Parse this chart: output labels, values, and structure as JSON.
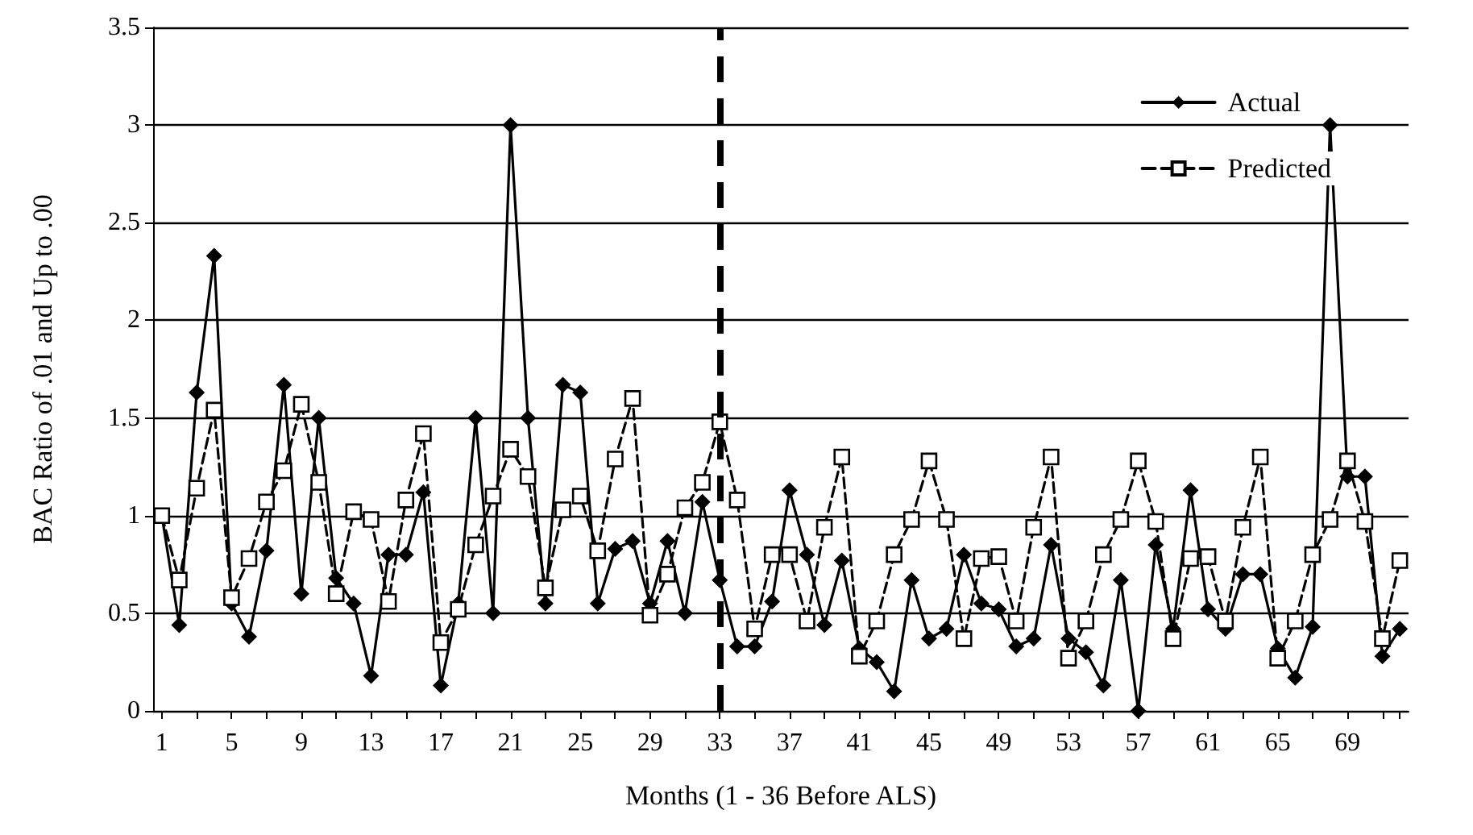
{
  "chart_data": {
    "type": "line",
    "xlabel": "Months (1 - 36 Before ALS)",
    "ylabel": "BAC Ratio of .01 and Up to .00",
    "categories": [
      "1",
      null,
      null,
      null,
      "5",
      null,
      null,
      null,
      "9",
      null,
      null,
      null,
      "13",
      null,
      null,
      null,
      "17",
      null,
      null,
      null,
      "21",
      null,
      null,
      null,
      "25",
      null,
      null,
      null,
      "29",
      null,
      null,
      null,
      "33",
      null,
      null,
      null,
      "37",
      null,
      null,
      null,
      "41",
      null,
      null,
      null,
      "45",
      null,
      null,
      null,
      "49",
      null,
      null,
      null,
      "53",
      null,
      null,
      null,
      "57",
      null,
      null,
      null,
      "61",
      null,
      null,
      null,
      "65",
      null,
      null,
      null,
      "69",
      null,
      null,
      null
    ],
    "series": [
      {
        "name": "Actual",
        "color": "#000000",
        "marker": "diamond",
        "line_style": "solid",
        "values": [
          1.0,
          0.44,
          1.63,
          2.33,
          0.55,
          0.38,
          0.82,
          1.67,
          0.6,
          1.5,
          0.68,
          0.55,
          0.18,
          0.8,
          0.8,
          1.12,
          0.13,
          0.55,
          1.5,
          0.5,
          3.0,
          1.5,
          0.55,
          1.67,
          1.63,
          0.55,
          0.83,
          0.87,
          0.55,
          0.87,
          0.5,
          1.07,
          0.67,
          0.33,
          0.33,
          0.56,
          1.13,
          0.8,
          0.44,
          0.77,
          0.32,
          0.25,
          0.1,
          0.67,
          0.37,
          0.42,
          0.8,
          0.55,
          0.52,
          0.33,
          0.37,
          0.85,
          0.37,
          0.3,
          0.13,
          0.67,
          0.0,
          0.85,
          0.42,
          1.13,
          0.52,
          0.42,
          0.7,
          0.7,
          0.32,
          0.17,
          0.43,
          3.0,
          1.2,
          1.2,
          0.28,
          0.42
        ]
      },
      {
        "name": "Predicted",
        "color": "#000000",
        "marker": "square",
        "line_style": "dashed",
        "values": [
          1.0,
          0.67,
          1.14,
          1.54,
          0.58,
          0.78,
          1.07,
          1.23,
          1.57,
          1.17,
          0.6,
          1.02,
          0.98,
          0.56,
          1.08,
          1.42,
          0.35,
          0.52,
          0.85,
          1.1,
          1.34,
          1.2,
          0.63,
          1.03,
          1.1,
          0.82,
          1.29,
          1.6,
          0.49,
          0.7,
          1.04,
          1.17,
          1.48,
          1.08,
          0.42,
          0.8,
          0.8,
          0.46,
          0.94,
          1.3,
          0.28,
          0.46,
          0.8,
          0.98,
          1.28,
          0.98,
          0.37,
          0.78,
          0.79,
          0.46,
          0.94,
          1.3,
          0.27,
          0.46,
          0.8,
          0.98,
          1.28,
          0.97,
          0.37,
          0.78,
          0.79,
          0.46,
          0.94,
          1.3,
          0.27,
          0.46,
          0.8,
          0.98,
          1.28,
          0.97,
          0.37,
          0.77
        ]
      }
    ],
    "ylim": [
      0,
      3.5
    ],
    "yticks": [
      0,
      0.5,
      1,
      1.5,
      2,
      2.5,
      3,
      3.5
    ],
    "ref_lines": [
      {
        "axis": "x",
        "value": "33",
        "color": "#000000",
        "line_style": "dashed"
      }
    ],
    "grid": "y",
    "legend": "top right"
  }
}
